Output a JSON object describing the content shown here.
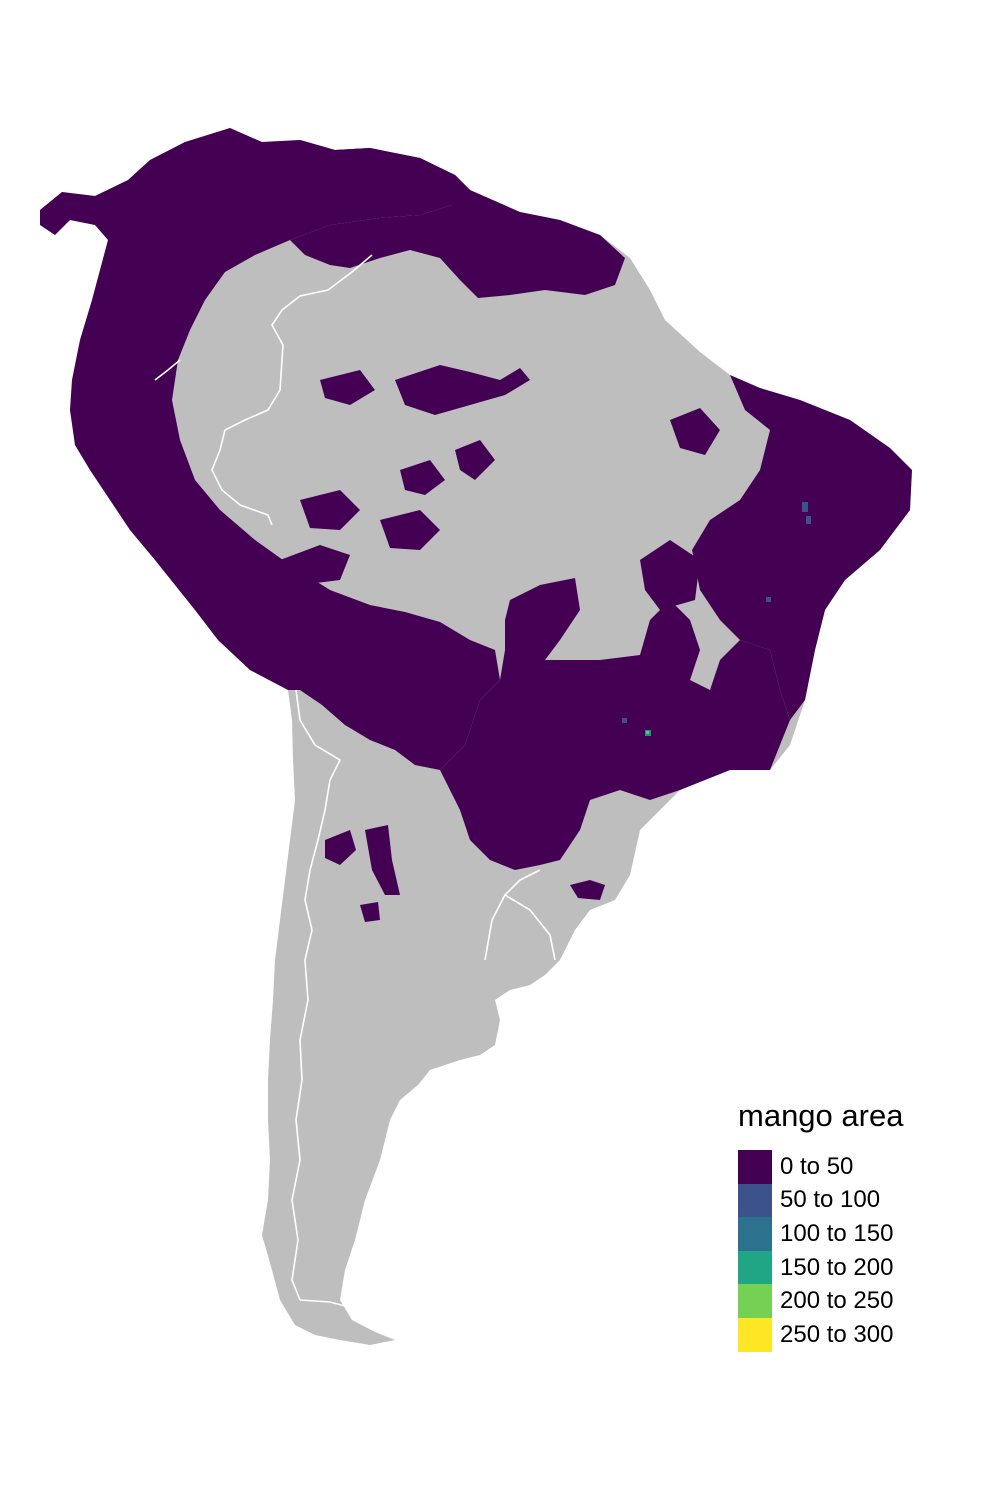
{
  "map": {
    "land_color": "#bebebe",
    "border_color": "#ffffff",
    "fill_color": "#440154",
    "hotspot_colors": [
      "#3b528b",
      "#21908c",
      "#5dc863"
    ]
  },
  "legend": {
    "title": "mango area",
    "items": [
      {
        "label": "0 to 50",
        "color": "#440154"
      },
      {
        "label": "50 to 100",
        "color": "#3b528b"
      },
      {
        "label": "100 to 150",
        "color": "#2c728e"
      },
      {
        "label": "150 to 200",
        "color": "#21a685"
      },
      {
        "label": "200 to 250",
        "color": "#75d054"
      },
      {
        "label": "250 to 300",
        "color": "#fde725"
      }
    ]
  }
}
